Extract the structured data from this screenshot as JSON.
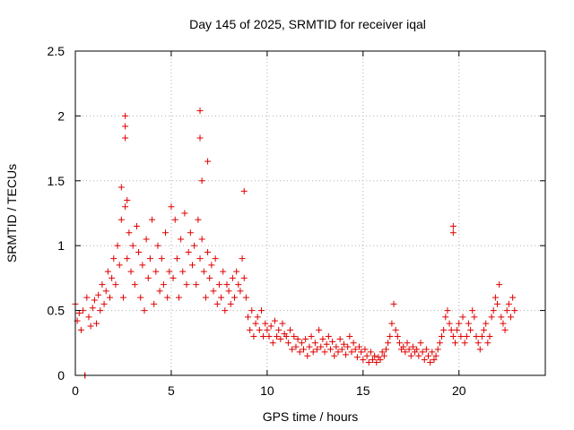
{
  "chart_data": {
    "type": "scatter",
    "title": "Day 145 of 2025, SRMTID for receiver iqal",
    "xlabel": "GPS time / hours",
    "ylabel": "SRMTID / TECUs",
    "xlim": [
      0,
      24.5
    ],
    "ylim": [
      0,
      2.5
    ],
    "x_ticks": [
      0,
      5,
      10,
      15,
      20
    ],
    "x_tick_labels": [
      "0",
      "5",
      "10",
      "15",
      "20"
    ],
    "y_ticks": [
      0,
      0.5,
      1,
      1.5,
      2,
      2.5
    ],
    "y_tick_labels": [
      "0",
      "0.5",
      "1",
      "1.5",
      "2",
      "2.5"
    ],
    "grid": true,
    "series": [
      {
        "name": "SRMTID",
        "color": "#e00000",
        "marker": "plus",
        "x": [
          0.0,
          0.1,
          0.2,
          0.3,
          0.4,
          0.5,
          0.6,
          0.7,
          0.8,
          0.9,
          1.0,
          1.1,
          1.2,
          1.3,
          1.4,
          1.5,
          1.6,
          1.7,
          1.8,
          1.9,
          2.0,
          2.1,
          2.2,
          2.3,
          2.4,
          2.5,
          2.6,
          2.7,
          2.8,
          2.9,
          3.0,
          3.1,
          3.2,
          3.3,
          3.4,
          3.5,
          3.6,
          3.7,
          3.8,
          3.9,
          4.0,
          4.1,
          4.2,
          4.3,
          4.4,
          4.5,
          4.6,
          4.7,
          4.8,
          4.9,
          5.0,
          5.1,
          5.2,
          5.3,
          5.4,
          5.5,
          5.6,
          5.7,
          5.8,
          5.9,
          6.0,
          6.1,
          6.2,
          6.3,
          6.4,
          6.5,
          6.6,
          6.7,
          6.8,
          6.9,
          7.0,
          7.1,
          7.2,
          7.3,
          7.4,
          7.5,
          7.6,
          7.7,
          7.8,
          7.9,
          8.0,
          8.1,
          8.2,
          8.3,
          8.4,
          8.5,
          8.6,
          8.7,
          8.8,
          8.9,
          9.0,
          9.1,
          9.2,
          9.3,
          9.4,
          9.5,
          9.6,
          9.7,
          9.8,
          9.9,
          10.0,
          10.1,
          10.2,
          10.3,
          10.4,
          10.5,
          10.6,
          10.7,
          10.8,
          10.9,
          11.0,
          11.1,
          11.2,
          11.3,
          11.4,
          11.5,
          11.6,
          11.7,
          11.8,
          11.9,
          12.0,
          12.1,
          12.2,
          12.3,
          12.4,
          12.5,
          12.6,
          12.7,
          12.8,
          12.9,
          13.0,
          13.1,
          13.2,
          13.3,
          13.4,
          13.5,
          13.6,
          13.7,
          13.8,
          13.9,
          14.0,
          14.1,
          14.2,
          14.3,
          14.4,
          14.5,
          14.6,
          14.7,
          14.8,
          14.9,
          15.0,
          15.1,
          15.2,
          15.3,
          15.4,
          15.5,
          15.6,
          15.7,
          15.8,
          15.9,
          16.0,
          16.1,
          16.2,
          16.3,
          16.4,
          16.5,
          16.6,
          16.7,
          16.8,
          16.9,
          17.0,
          17.1,
          17.2,
          17.3,
          17.4,
          17.5,
          17.6,
          17.7,
          17.8,
          17.9,
          18.0,
          18.1,
          18.2,
          18.3,
          18.4,
          18.5,
          18.6,
          18.7,
          18.8,
          18.9,
          19.0,
          19.1,
          19.2,
          19.3,
          19.4,
          19.5,
          19.6,
          19.7,
          19.8,
          19.9,
          20.0,
          20.1,
          20.2,
          20.3,
          20.4,
          20.5,
          20.6,
          20.7,
          20.8,
          20.9,
          21.0,
          21.1,
          21.2,
          21.3,
          21.4,
          21.5,
          21.6,
          21.7,
          21.8,
          21.9,
          22.0,
          22.1,
          22.2,
          22.3,
          22.4,
          22.5,
          22.6,
          22.7,
          22.8,
          22.9,
          0.5,
          2.4,
          2.6,
          2.6,
          2.7,
          2.6,
          6.5,
          6.5,
          6.6,
          6.9,
          8.8,
          19.7,
          19.7
        ],
        "y": [
          0.55,
          0.42,
          0.48,
          0.35,
          0.5,
          0.0,
          0.6,
          0.45,
          0.38,
          0.52,
          0.58,
          0.4,
          0.62,
          0.5,
          0.7,
          0.55,
          0.65,
          0.8,
          0.6,
          0.75,
          0.9,
          0.7,
          1.0,
          0.85,
          1.2,
          0.6,
          1.3,
          0.9,
          1.1,
          0.8,
          1.0,
          0.7,
          1.15,
          0.95,
          0.6,
          0.85,
          0.5,
          1.05,
          0.75,
          0.9,
          1.2,
          0.55,
          0.8,
          1.0,
          0.65,
          0.9,
          0.7,
          1.1,
          0.6,
          0.8,
          1.3,
          0.75,
          1.2,
          0.9,
          0.6,
          1.05,
          0.8,
          1.25,
          0.7,
          0.95,
          1.1,
          0.85,
          1.0,
          0.7,
          1.2,
          0.9,
          1.05,
          0.8,
          0.6,
          0.95,
          0.75,
          0.85,
          0.65,
          0.9,
          0.55,
          0.7,
          0.6,
          0.8,
          0.5,
          0.7,
          0.65,
          0.55,
          0.75,
          0.6,
          0.8,
          0.7,
          0.65,
          0.9,
          0.75,
          0.6,
          0.45,
          0.35,
          0.5,
          0.3,
          0.4,
          0.45,
          0.35,
          0.5,
          0.3,
          0.4,
          0.35,
          0.3,
          0.38,
          0.25,
          0.42,
          0.3,
          0.35,
          0.28,
          0.4,
          0.32,
          0.3,
          0.25,
          0.35,
          0.2,
          0.3,
          0.22,
          0.28,
          0.18,
          0.25,
          0.2,
          0.28,
          0.15,
          0.22,
          0.3,
          0.18,
          0.25,
          0.2,
          0.35,
          0.22,
          0.28,
          0.18,
          0.24,
          0.3,
          0.2,
          0.26,
          0.15,
          0.22,
          0.18,
          0.28,
          0.2,
          0.24,
          0.16,
          0.22,
          0.3,
          0.18,
          0.25,
          0.2,
          0.14,
          0.22,
          0.18,
          0.12,
          0.2,
          0.15,
          0.1,
          0.18,
          0.12,
          0.15,
          0.1,
          0.14,
          0.12,
          0.18,
          0.15,
          0.2,
          0.25,
          0.3,
          0.4,
          0.55,
          0.35,
          0.3,
          0.25,
          0.2,
          0.22,
          0.18,
          0.25,
          0.2,
          0.15,
          0.22,
          0.18,
          0.2,
          0.15,
          0.25,
          0.18,
          0.12,
          0.2,
          0.15,
          0.1,
          0.18,
          0.12,
          0.15,
          0.2,
          0.25,
          0.3,
          0.35,
          0.45,
          0.5,
          0.4,
          0.35,
          0.3,
          0.25,
          0.35,
          0.4,
          0.3,
          0.45,
          0.25,
          0.3,
          0.4,
          0.35,
          0.5,
          0.45,
          0.3,
          0.25,
          0.2,
          0.3,
          0.35,
          0.4,
          0.25,
          0.3,
          0.45,
          0.5,
          0.6,
          0.55,
          0.7,
          0.45,
          0.4,
          0.35,
          0.5,
          0.55,
          0.45,
          0.6,
          0.5,
          0.0,
          1.45,
          2.0,
          1.92,
          1.35,
          1.83,
          2.04,
          1.83,
          1.5,
          1.65,
          1.42,
          1.15,
          1.1
        ]
      }
    ]
  }
}
